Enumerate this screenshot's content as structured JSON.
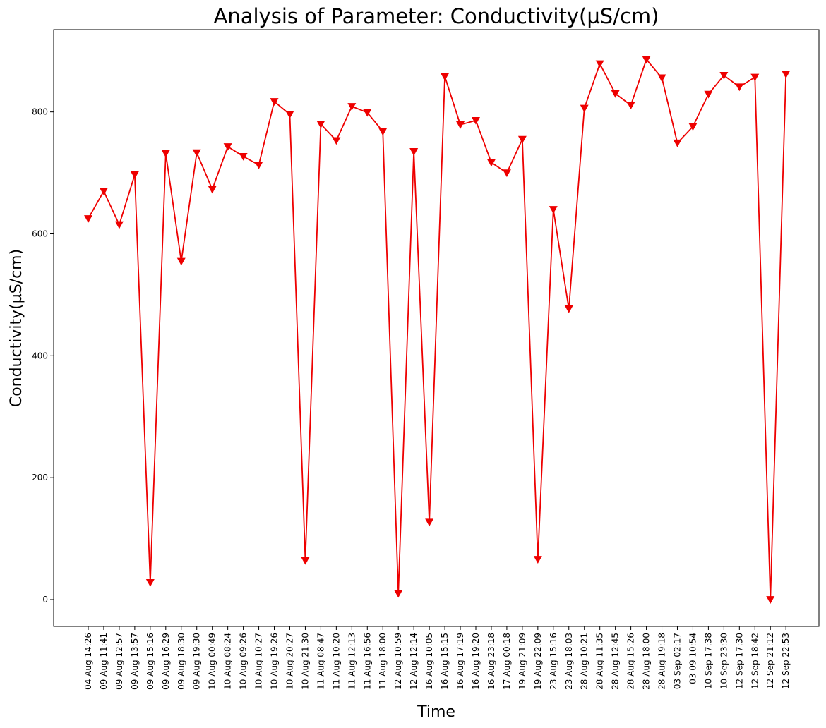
{
  "chart_data": {
    "type": "line",
    "title": "Analysis of Parameter: Conductivity(µS/cm)",
    "xlabel": "Time",
    "ylabel": "Conductivity(µS/cm)",
    "ylim": [
      -44,
      935
    ],
    "yticks": [
      0,
      200,
      400,
      600,
      800
    ],
    "grid": false,
    "marker": "triangle-down",
    "colors": {
      "line": "#ee0000",
      "marker": "#ee0000"
    },
    "categories": [
      "04 Aug 14:26",
      "09 Aug 11:41",
      "09 Aug 12:57",
      "09 Aug 13:57",
      "09 Aug 15:16",
      "09 Aug 16:29",
      "09 Aug 18:30",
      "09 Aug 19:30",
      "10 Aug 00:49",
      "10 Aug 08:24",
      "10 Aug 09:26",
      "10 Aug 10:27",
      "10 Aug 19:26",
      "10 Aug 20:27",
      "10 Aug 21:30",
      "11 Aug 08:47",
      "11 Aug 10:20",
      "11 Aug 12:13",
      "11 Aug 16:56",
      "11 Aug 18:00",
      "12 Aug 10:59",
      "12 Aug 12:14",
      "16 Aug 10:05",
      "16 Aug 15:15",
      "16 Aug 17:19",
      "16 Aug 19:20",
      "16 Aug 23:18",
      "17 Aug 00:18",
      "19 Aug 21:09",
      "19 Aug 22:09",
      "23 Aug 15:16",
      "23 Aug 18:03",
      "28 Aug 10:21",
      "28 Aug 11:35",
      "28 Aug 12:45",
      "28 Aug 15:26",
      "28 Aug 18:00",
      "28 Aug 19:18",
      "03 Sep 02:17",
      "03 09 10:54",
      "10 Sep 17:38",
      "10 Sep 23:30",
      "12 Sep 17:30",
      "12 Sep 18:42",
      "12 Sep 21:12",
      "12 Sep 22:53"
    ],
    "series": [
      {
        "values": [
          625,
          670,
          615,
          697,
          28,
          732,
          555,
          733,
          673,
          743,
          727,
          713,
          817,
          796,
          64,
          780,
          753,
          809,
          799,
          768,
          10,
          735,
          127,
          858,
          779,
          786,
          717,
          700,
          755,
          66,
          640,
          477,
          806,
          879,
          830,
          811,
          886,
          856,
          749,
          776,
          829,
          860,
          841,
          857,
          0,
          862
        ]
      }
    ]
  }
}
